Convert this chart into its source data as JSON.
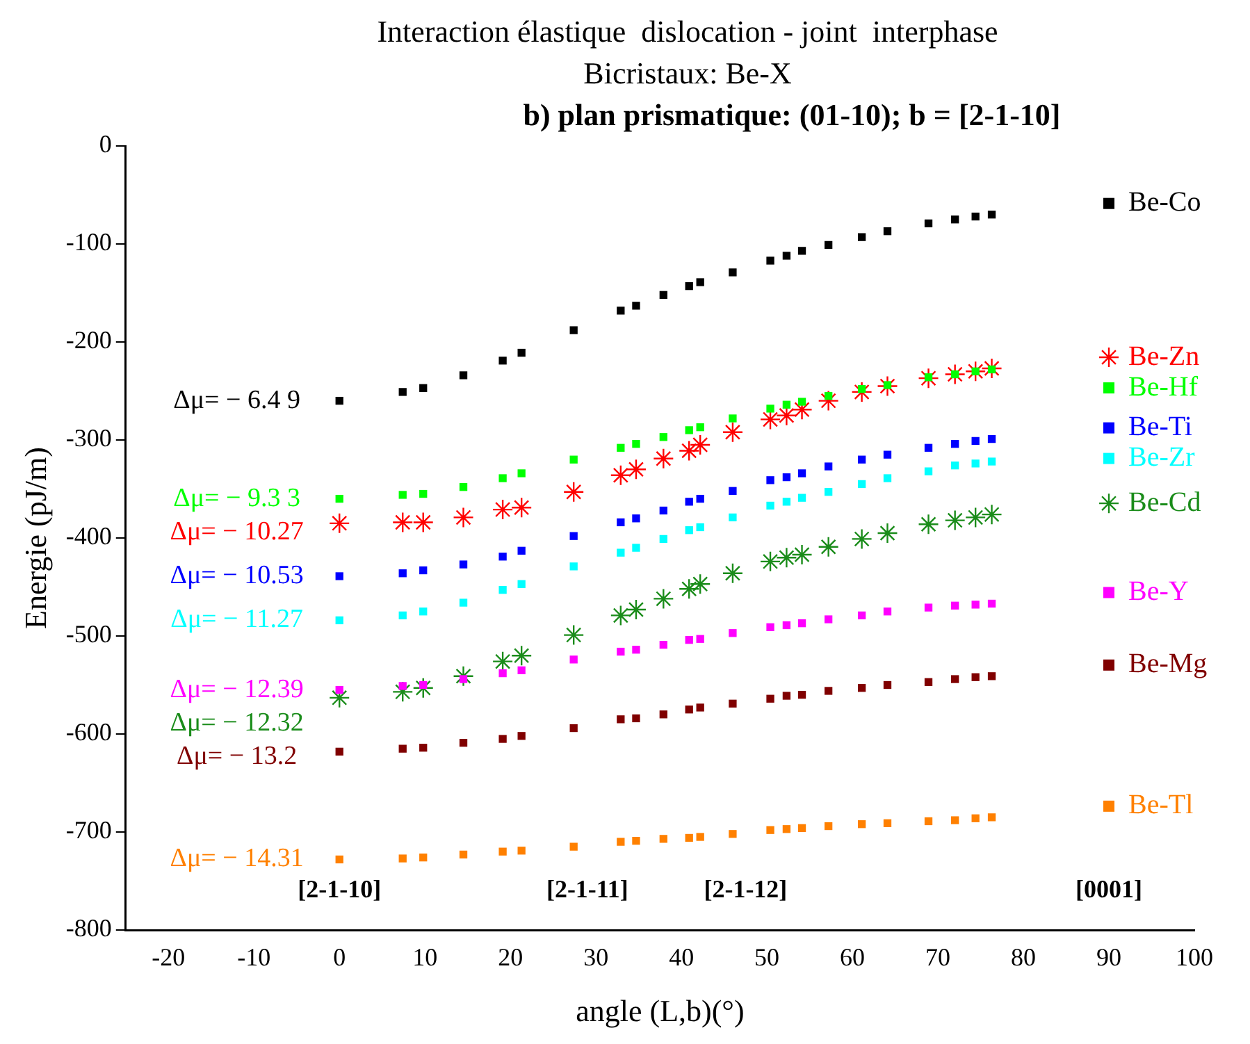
{
  "chart_data": {
    "type": "scatter",
    "title": "Interaction élastique  dislocation - joint  interphase",
    "subtitle": "Bicristaux: Be-X",
    "xlabel": "angle (L,b)(°)",
    "ylabel": "Energie (pJ/m)",
    "x": [
      0,
      7.4,
      9.8,
      14.5,
      19.1,
      21.3,
      27.4,
      32.9,
      34.7,
      37.9,
      40.9,
      42.2,
      46,
      50.4,
      52.3,
      54.1,
      57.2,
      61.1,
      64.1,
      68.9,
      72,
      74.4,
      76.3
    ],
    "series": [
      {
        "name": "Be-Co",
        "color": "#000000",
        "marker": "square",
        "values": [
          -260,
          -251,
          -247,
          -234,
          -219,
          -211,
          -188,
          -168,
          -163,
          -152,
          -143,
          -139,
          -129,
          -117,
          -112,
          -107,
          -101,
          -93,
          -87,
          -79,
          -75,
          -72,
          -70
        ]
      },
      {
        "name": "Be-Hf",
        "color": "#00ff00",
        "marker": "square",
        "values": [
          -360,
          -356,
          -355,
          -348,
          -339,
          -334,
          -320,
          -308,
          -304,
          -297,
          -290,
          -287,
          -278,
          -268,
          -264,
          -261,
          -255,
          -248,
          -244,
          -236,
          -233,
          -230,
          -228
        ]
      },
      {
        "name": "Be-Zn",
        "color": "#ff0000",
        "marker": "cross",
        "values": [
          -385,
          -384,
          -384,
          -379,
          -371,
          -369,
          -353,
          -336,
          -330,
          -319,
          -311,
          -305,
          -292,
          -279,
          -275,
          -269,
          -260,
          -251,
          -245,
          -237,
          -233,
          -230,
          -227
        ]
      },
      {
        "name": "Be-Ti",
        "color": "#0000ff",
        "marker": "square",
        "values": [
          -439,
          -436,
          -433,
          -427,
          -419,
          -413,
          -398,
          -384,
          -380,
          -372,
          -363,
          -360,
          -352,
          -341,
          -338,
          -334,
          -327,
          -320,
          -315,
          -308,
          -304,
          -301,
          -299
        ]
      },
      {
        "name": "Be-Zr",
        "color": "#00ffff",
        "marker": "square",
        "values": [
          -484,
          -479,
          -475,
          -466,
          -453,
          -447,
          -429,
          -415,
          -410,
          -401,
          -392,
          -389,
          -379,
          -367,
          -363,
          -359,
          -353,
          -345,
          -339,
          -332,
          -326,
          -324,
          -322
        ]
      },
      {
        "name": "Be-Y",
        "color": "#ff00ff",
        "marker": "square",
        "values": [
          -555,
          -551,
          -550,
          -544,
          -538,
          -535,
          -524,
          -516,
          -514,
          -509,
          -504,
          -503,
          -497,
          -491,
          -489,
          -487,
          -483,
          -479,
          -475,
          -471,
          -469,
          -468,
          -467
        ]
      },
      {
        "name": "Be-Cd",
        "color": "#1a8c1a",
        "marker": "cross",
        "values": [
          -563,
          -557,
          -553,
          -541,
          -526,
          -520,
          -499,
          -479,
          -473,
          -462,
          -452,
          -447,
          -436,
          -424,
          -420,
          -417,
          -409,
          -401,
          -395,
          -386,
          -382,
          -379,
          -376
        ]
      },
      {
        "name": "Be-Mg",
        "color": "#800000",
        "marker": "square",
        "values": [
          -618,
          -615,
          -614,
          -609,
          -605,
          -602,
          -594,
          -585,
          -584,
          -580,
          -575,
          -573,
          -569,
          -564,
          -561,
          -560,
          -556,
          -553,
          -550,
          -547,
          -544,
          -542,
          -541
        ]
      },
      {
        "name": "Be-Tl",
        "color": "#ff8000",
        "marker": "square",
        "values": [
          -728,
          -727,
          -726,
          -723,
          -720,
          -719,
          -715,
          -710,
          -709,
          -707,
          -706,
          -705,
          -702,
          -698,
          -697,
          -696,
          -694,
          -692,
          -691,
          -689,
          -688,
          -686,
          -685
        ]
      }
    ],
    "annotations": [
      "b) plan prismatique: (01-10); b = [2-1-10]",
      "Δμ= − 6.4 9",
      "Δμ= − 9.3 3",
      "Δμ= − 10.27",
      "Δμ= − 10.53",
      "Δμ= − 11.27",
      "Δμ= − 12.39",
      "Δμ= − 12.32",
      "Δμ= − 13.2",
      "Δμ= − 14.31",
      "[2-1-10]",
      "[2-1-11]",
      "[2-1-12]",
      "[0001]"
    ],
    "xlim": [
      -25,
      100
    ],
    "xticks": [
      -20,
      -10,
      0,
      10,
      20,
      30,
      40,
      50,
      60,
      70,
      80,
      90,
      100
    ],
    "ylim": [
      -800,
      0
    ],
    "yticks": [
      0,
      -100,
      -200,
      -300,
      -400,
      -500,
      -600,
      -700,
      -800
    ],
    "grid": false,
    "legend": "right"
  }
}
